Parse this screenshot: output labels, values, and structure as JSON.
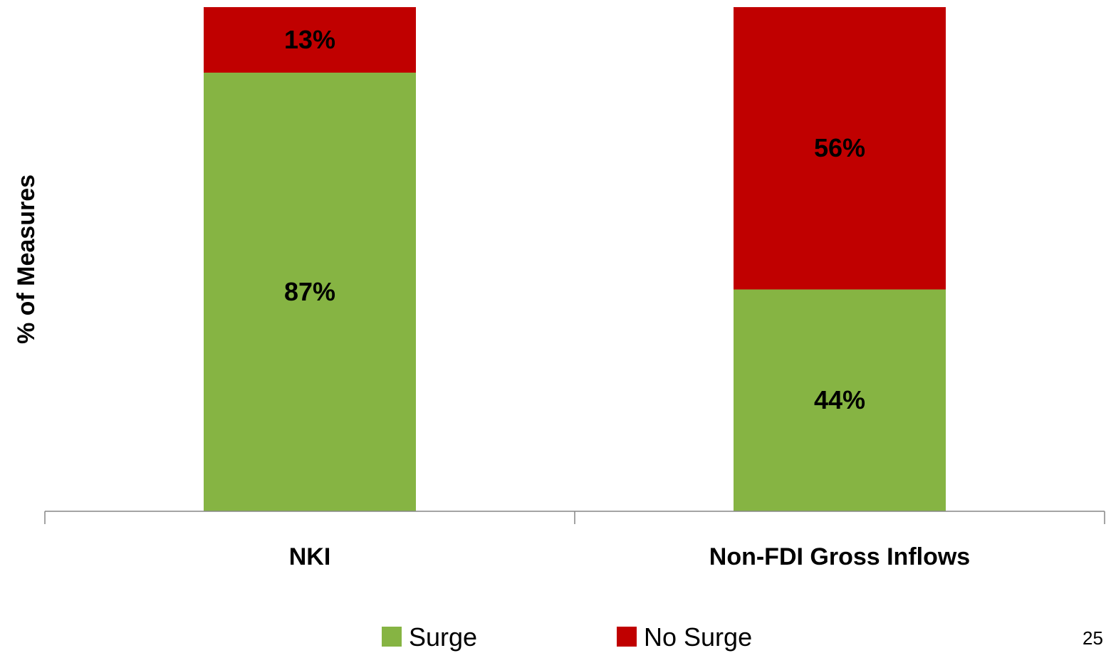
{
  "chart_data": {
    "type": "bar",
    "stacked": true,
    "normalized": true,
    "categories": [
      "NKI",
      "Non-FDI Gross Inflows"
    ],
    "series": [
      {
        "name": "Surge",
        "values": [
          87,
          44
        ],
        "labels": [
          "87%",
          "44%"
        ],
        "color": "#86b443"
      },
      {
        "name": "No Surge",
        "values": [
          13,
          56
        ],
        "labels": [
          "13%",
          "56%"
        ],
        "color": "#c00000"
      }
    ],
    "ylabel": "% of Measures",
    "ylim": [
      0,
      100
    ],
    "legend_position": "bottom",
    "grid": false
  },
  "page_number": "25"
}
